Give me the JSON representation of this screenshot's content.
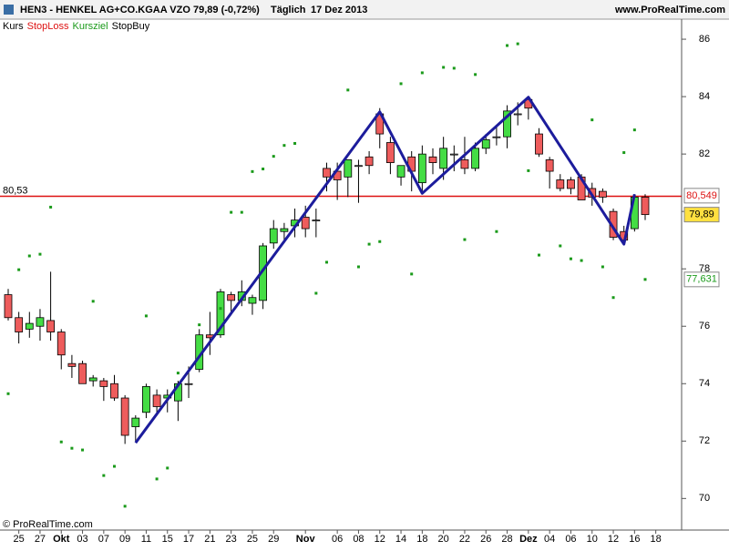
{
  "header": {
    "symbol": "HEN3 - HENKEL AG+CO.KGAA VZO",
    "price": "79,89 (-0,72%)",
    "period": "Täglich",
    "date": "17 Dez 2013",
    "site": "www.ProRealTime.com"
  },
  "footer": "© ProRealTime.com",
  "chart_data": {
    "type": "candlestick",
    "categories": [
      null,
      "25",
      null,
      "27",
      null,
      "Okt",
      null,
      "03",
      null,
      "07",
      null,
      "09",
      null,
      "11",
      null,
      "15",
      null,
      "17",
      null,
      "21",
      null,
      "23",
      null,
      "25",
      null,
      "29",
      null,
      null,
      "Nov",
      null,
      null,
      "06",
      null,
      "08",
      null,
      "12",
      null,
      "14",
      null,
      "18",
      null,
      "20",
      null,
      "22",
      null,
      "26",
      null,
      "28",
      null,
      "Dez",
      null,
      "04",
      null,
      "06",
      null,
      "10",
      null,
      "12",
      null,
      "16",
      null,
      "18"
    ],
    "series": [
      {
        "name": "Kurs",
        "color": "#000000",
        "up_color": "#44dd44",
        "down_color": "#ee5c5c",
        "open": [
          77.1,
          76.3,
          75.9,
          76.0,
          76.2,
          75.8,
          74.7,
          74.7,
          74.1,
          74.1,
          74.0,
          73.5,
          72.5,
          73.0,
          73.6,
          73.5,
          73.4,
          74.0,
          74.5,
          75.7,
          75.7,
          77.1,
          76.9,
          76.8,
          76.9,
          78.9,
          79.3,
          79.5,
          79.8,
          79.7,
          81.5,
          81.4,
          81.2,
          81.6,
          81.9,
          83.4,
          82.4,
          81.2,
          81.9,
          81.0,
          81.9,
          81.5,
          82.0,
          81.8,
          81.5,
          82.2,
          82.6,
          82.6,
          83.4,
          83.9,
          82.7,
          81.8,
          81.1,
          81.1,
          81.2,
          80.8,
          80.7,
          80.0,
          79.3,
          79.4,
          80.5,
          null
        ],
        "high": [
          77.3,
          76.5,
          76.5,
          76.6,
          77.9,
          75.9,
          75.0,
          74.8,
          74.3,
          74.2,
          74.3,
          73.6,
          72.9,
          74.0,
          73.8,
          73.8,
          74.1,
          74.6,
          75.9,
          76.5,
          77.3,
          77.2,
          77.6,
          77.1,
          78.9,
          79.7,
          79.6,
          80.1,
          80.2,
          80.1,
          81.7,
          81.7,
          81.8,
          81.8,
          82.1,
          83.6,
          82.6,
          81.6,
          82.1,
          82.3,
          82.2,
          82.6,
          82.3,
          82.6,
          82.4,
          82.7,
          83.0,
          83.7,
          83.8,
          84.0,
          82.9,
          81.9,
          81.3,
          81.2,
          81.3,
          81.0,
          80.8,
          80.1,
          79.5,
          80.6,
          80.6,
          null
        ],
        "low": [
          76.2,
          75.4,
          75.6,
          75.5,
          75.5,
          74.5,
          74.2,
          74.0,
          73.9,
          73.4,
          73.4,
          71.9,
          72.0,
          72.8,
          73.0,
          73.0,
          72.7,
          73.5,
          74.4,
          75.0,
          75.6,
          76.5,
          76.7,
          76.4,
          76.6,
          78.7,
          78.9,
          79.1,
          79.1,
          79.1,
          80.7,
          80.4,
          80.5,
          80.3,
          81.3,
          82.2,
          81.3,
          80.9,
          80.7,
          80.7,
          81.3,
          81.1,
          81.4,
          81.3,
          81.4,
          82.0,
          82.3,
          82.2,
          83.0,
          83.2,
          81.9,
          80.8,
          80.7,
          80.6,
          80.4,
          80.2,
          80.3,
          79.0,
          78.9,
          79.3,
          79.7,
          null
        ],
        "close": [
          76.3,
          75.8,
          76.1,
          76.3,
          75.8,
          75.0,
          74.6,
          74.0,
          74.2,
          73.9,
          73.5,
          72.2,
          72.8,
          73.9,
          73.2,
          73.6,
          74.0,
          74.0,
          75.7,
          75.6,
          77.2,
          76.9,
          77.2,
          77.0,
          78.8,
          79.4,
          79.4,
          79.7,
          79.4,
          79.7,
          81.2,
          81.1,
          81.8,
          81.6,
          81.6,
          82.7,
          81.7,
          81.6,
          81.4,
          82.0,
          81.7,
          82.2,
          82.0,
          81.5,
          82.2,
          82.5,
          82.6,
          83.5,
          83.4,
          83.6,
          82.0,
          81.4,
          80.8,
          80.8,
          80.4,
          80.5,
          80.5,
          79.1,
          79.0,
          80.5,
          79.89,
          null
        ],
        "last": {
          "value": 79.89,
          "label": "79,89"
        },
        "last_color": "#ffe040"
      },
      {
        "name": "StopLoss",
        "color": "#dd1111",
        "level": {
          "value": 80.53,
          "label": "80,53"
        },
        "last": {
          "value": 80.549,
          "label": "80,549"
        }
      },
      {
        "name": "Kursziel",
        "color": "#1a9a1a",
        "values": [
          73.65,
          77.97,
          78.45,
          78.51,
          80.15,
          71.97,
          71.75,
          71.69,
          76.87,
          70.8,
          71.12,
          69.73,
          null,
          76.36,
          70.68,
          71.06,
          74.37,
          null,
          76.05,
          null,
          76.62,
          79.97,
          79.97,
          81.39,
          81.48,
          81.92,
          82.3,
          82.37,
          null,
          77.15,
          78.23,
          null,
          84.23,
          78.07,
          78.86,
          78.95,
          null,
          84.45,
          77.82,
          84.83,
          null,
          85.02,
          84.99,
          79.02,
          84.77,
          null,
          79.3,
          85.78,
          85.84,
          81.42,
          78.48,
          null,
          78.8,
          78.35,
          78.29,
          83.19,
          78.07,
          77.0,
          82.05,
          82.84,
          77.631,
          null
        ],
        "last": {
          "value": 77.631,
          "label": "77,631"
        }
      },
      {
        "name": "StopBuy",
        "color": "#000000"
      }
    ],
    "trend_line": {
      "color": "#1c1c9c",
      "category_index": [
        12,
        35,
        39,
        49,
        58,
        59
      ],
      "values": [
        71.94,
        83.47,
        80.63,
        83.98,
        78.86,
        80.6
      ]
    },
    "ylim": [
      68.9,
      86.7
    ],
    "yticks": [
      70,
      72,
      74,
      76,
      78,
      80,
      82,
      84,
      86
    ]
  }
}
